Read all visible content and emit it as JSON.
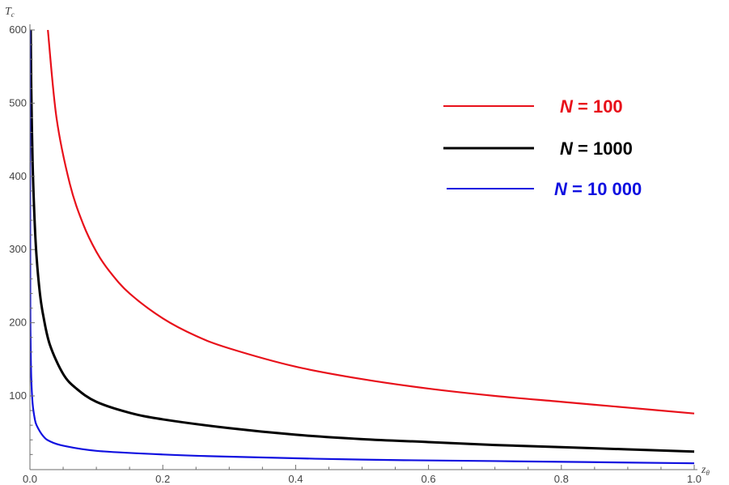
{
  "chart_data": {
    "type": "line",
    "xlabel": "z",
    "xlabel_sub": "θ",
    "ylabel": "T",
    "ylabel_sub": "c",
    "xlim": [
      0,
      1
    ],
    "ylim": [
      10,
      600
    ],
    "x_ticks": [
      0,
      0.2,
      0.4,
      0.6,
      0.8,
      1
    ],
    "x_tick_labels": [
      "0.0",
      "0.2",
      "0.4",
      "0.6",
      "0.8",
      "1.0"
    ],
    "y_ticks": [
      100,
      200,
      300,
      400,
      500,
      600
    ],
    "y_tick_labels": [
      "100",
      "200",
      "300",
      "400",
      "500",
      "600"
    ],
    "grid": false,
    "legend_position": "top-right",
    "series": [
      {
        "name": "N = 100",
        "legend_var": "N",
        "legend_rest": " = 100",
        "color": "#e8101a",
        "x": [
          0.027,
          0.04,
          0.06,
          0.08,
          0.1,
          0.12,
          0.15,
          0.2,
          0.25,
          0.3,
          0.4,
          0.5,
          0.6,
          0.7,
          0.8,
          0.9,
          1.0
        ],
        "y": [
          600,
          480,
          390,
          335,
          297,
          270,
          240,
          206,
          182,
          165,
          140,
          123,
          110,
          100,
          92,
          84,
          76
        ]
      },
      {
        "name": "N = 1000",
        "legend_var": "N",
        "legend_rest": " = 1000",
        "color": "#000000",
        "x": [
          0.0012,
          0.002,
          0.004,
          0.007,
          0.01,
          0.015,
          0.02,
          0.03,
          0.05,
          0.07,
          0.1,
          0.15,
          0.2,
          0.3,
          0.4,
          0.5,
          0.6,
          0.7,
          0.8,
          0.9,
          1.0
        ],
        "y": [
          600,
          520,
          420,
          340,
          290,
          240,
          210,
          170,
          130,
          110,
          92,
          77,
          68,
          56,
          47,
          41,
          37,
          33,
          30,
          27,
          24
        ]
      },
      {
        "name": "N = 10 000",
        "legend_var": "N",
        "legend_rest": " = 10 000",
        "color": "#1010e0",
        "x": [
          0.0001,
          0.0005,
          0.001,
          0.002,
          0.004,
          0.007,
          0.01,
          0.02,
          0.03,
          0.05,
          0.1,
          0.2,
          0.3,
          0.5,
          0.7,
          1.0
        ],
        "y": [
          600,
          250,
          175,
          125,
          90,
          70,
          60,
          45,
          38,
          32,
          25,
          20,
          17,
          13,
          11,
          8
        ]
      }
    ]
  }
}
